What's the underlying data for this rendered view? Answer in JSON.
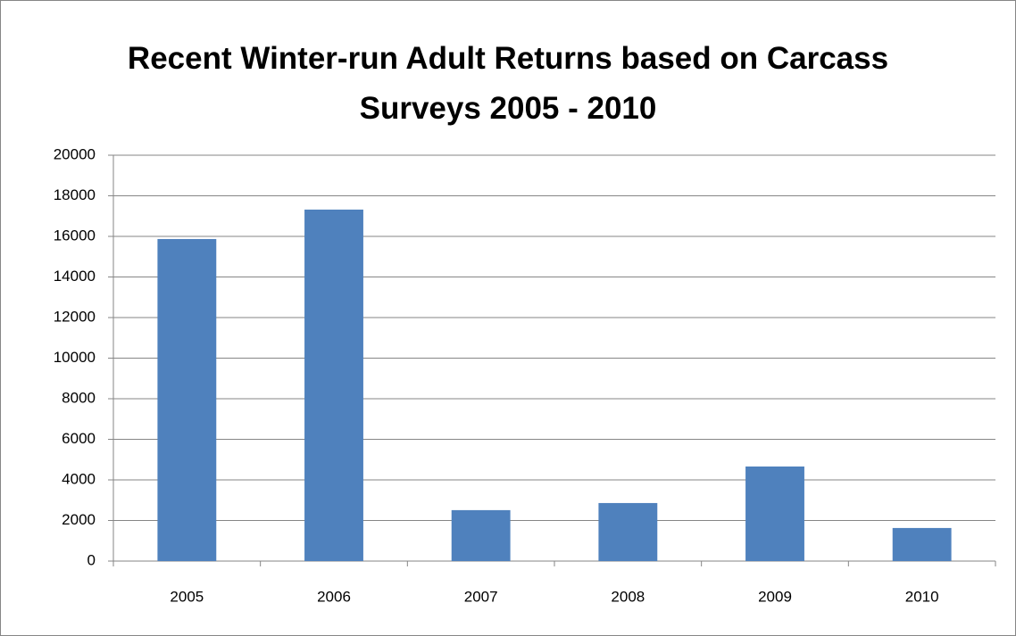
{
  "chart_data": {
    "type": "bar",
    "title": "Recent Winter-run Adult Returns based on Carcass Surveys 2005 - 2010",
    "categories": [
      "2005",
      "2006",
      "2007",
      "2008",
      "2009",
      "2010"
    ],
    "values": [
      15870,
      17320,
      2510,
      2860,
      4660,
      1630
    ],
    "color": "#4f81bd",
    "ylim": [
      0,
      20000
    ],
    "yticks": [
      0,
      2000,
      4000,
      6000,
      8000,
      10000,
      12000,
      14000,
      16000,
      18000,
      20000
    ],
    "grid": true
  }
}
